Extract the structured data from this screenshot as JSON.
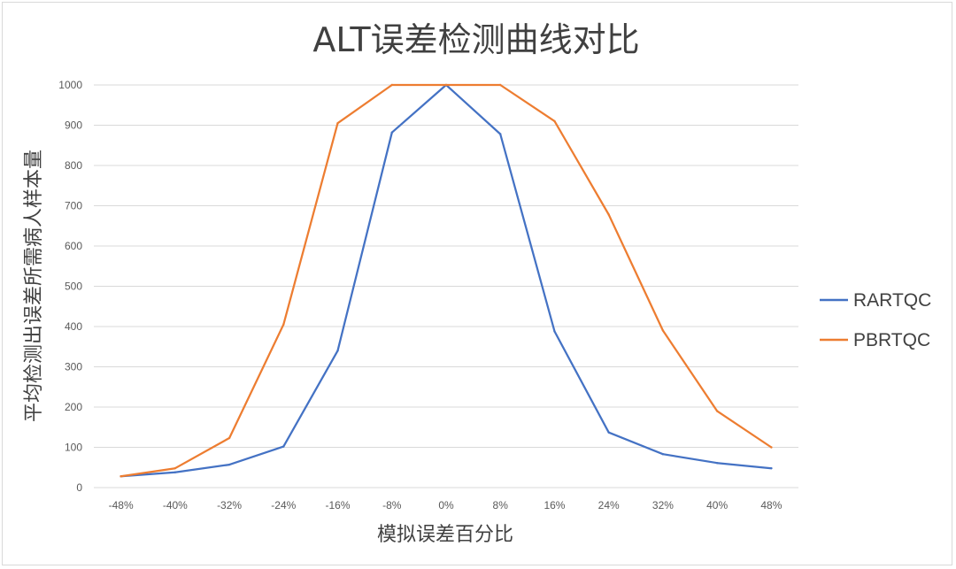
{
  "chart_data": {
    "type": "line",
    "title": "ALT误差检测曲线对比",
    "xlabel": "模拟误差百分比",
    "ylabel": "平均检测出误差所需病人样本量",
    "categories": [
      "-48%",
      "-40%",
      "-32%",
      "-24%",
      "-16%",
      "-8%",
      "0%",
      "8%",
      "16%",
      "24%",
      "32%",
      "40%",
      "48%"
    ],
    "ylim": [
      0,
      1000
    ],
    "yticks": [
      0,
      100,
      200,
      300,
      400,
      500,
      600,
      700,
      800,
      900,
      1000
    ],
    "grid": true,
    "legend_position": "right",
    "series": [
      {
        "name": "RARTQC",
        "color": "#4472C4",
        "values": [
          28,
          38,
          57,
          102,
          340,
          882,
          1000,
          878,
          388,
          137,
          83,
          61,
          48
        ]
      },
      {
        "name": "PBRTQC",
        "color": "#ED7D31",
        "values": [
          28,
          48,
          123,
          405,
          905,
          1000,
          1000,
          1000,
          910,
          678,
          390,
          190,
          100
        ]
      }
    ]
  }
}
